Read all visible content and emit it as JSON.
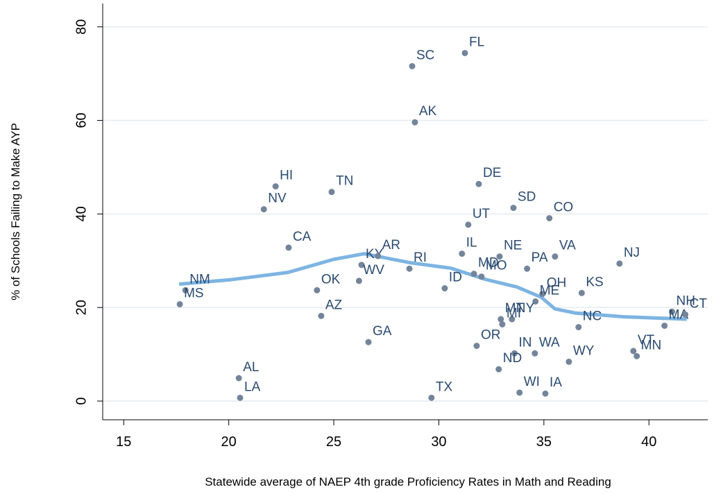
{
  "chart_data": {
    "type": "scatter",
    "x_label": "Statewide average of NAEP 4th grade Proficiency Rates in Math and Reading",
    "y_label": "% of Schools Failing to Make AYP",
    "xlim": [
      14,
      42.8
    ],
    "ylim": [
      -4,
      85
    ],
    "xticks": [
      15,
      20,
      25,
      30,
      35,
      40
    ],
    "yticks": [
      0,
      20,
      40,
      60,
      80
    ],
    "grid": true,
    "points": {
      "color": "#74859a",
      "label_color": "#2a4a70",
      "labels": [
        "SC",
        "FL",
        "AK",
        "HI",
        "TN",
        "NV",
        "DE",
        "SD",
        "CO",
        "UT",
        "CA",
        "IL",
        "NE",
        "VA",
        "NJ",
        "KY",
        "AR",
        "RI",
        "PA",
        "MD",
        "MO",
        "WV",
        "OK",
        "ID",
        "OH",
        "ME",
        "KS",
        "NM",
        "MS",
        "AZ",
        "NH",
        "MA",
        "CT",
        "MT",
        "NY",
        "MI",
        "NC",
        "GA",
        "OR",
        "IN",
        "WA",
        "VT",
        "MN",
        "WY",
        "ND",
        "AL",
        "LA",
        "WI",
        "IA",
        "TX"
      ],
      "x": [
        28.73,
        31.24,
        28.86,
        22.23,
        24.9,
        21.67,
        31.9,
        33.55,
        35.26,
        31.4,
        22.85,
        31.1,
        32.89,
        35.53,
        38.6,
        26.32,
        27.1,
        28.6,
        34.2,
        31.67,
        32.03,
        26.2,
        24.2,
        30.28,
        34.93,
        34.6,
        36.8,
        17.94,
        17.67,
        24.4,
        41.1,
        40.74,
        41.73,
        32.95,
        33.48,
        33.02,
        36.65,
        26.65,
        31.8,
        33.6,
        34.57,
        39.26,
        39.42,
        36.19,
        32.85,
        20.48,
        20.54,
        33.84,
        35.07,
        29.65
      ],
      "y": [
        71.6,
        74.4,
        59.6,
        45.9,
        44.7,
        41.0,
        46.4,
        41.3,
        39.1,
        37.7,
        32.8,
        31.5,
        30.9,
        30.9,
        29.4,
        29.1,
        31.0,
        28.3,
        28.3,
        27.2,
        26.6,
        25.7,
        23.7,
        24.1,
        22.9,
        21.3,
        23.1,
        23.7,
        20.7,
        18.2,
        19.1,
        16.1,
        18.5,
        17.5,
        17.5,
        16.4,
        15.8,
        12.6,
        11.8,
        10.2,
        10.2,
        10.7,
        9.6,
        8.4,
        6.8,
        4.9,
        0.7,
        1.8,
        1.6,
        0.7
      ]
    },
    "fit": {
      "color": "#7db4e2",
      "x": [
        17.64,
        20.02,
        22.82,
        25.0,
        26.45,
        28.6,
        30.58,
        32.23,
        33.71,
        34.87,
        35.53,
        36.52,
        38.83,
        41.8
      ],
      "y": [
        25.0,
        25.9,
        27.5,
        30.3,
        31.5,
        29.6,
        28.4,
        26.0,
        24.4,
        22.2,
        19.7,
        18.8,
        18.0,
        17.5
      ]
    }
  }
}
